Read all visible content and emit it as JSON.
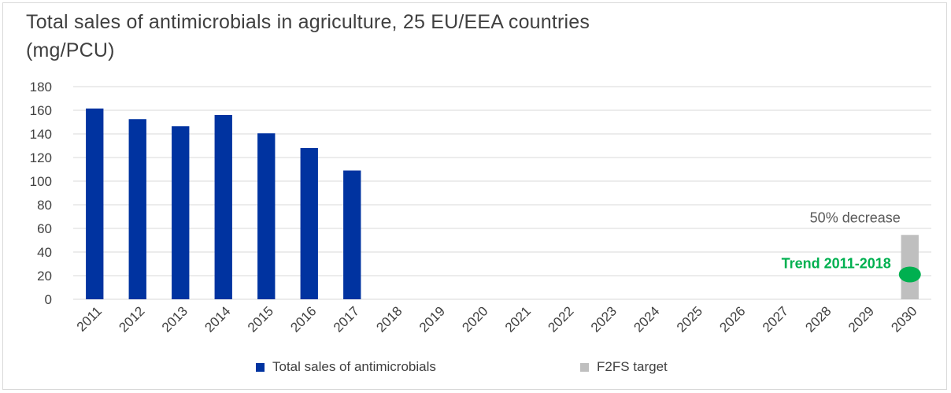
{
  "chart_data": {
    "type": "bar",
    "title_lines": [
      "Total sales of antimicrobials in agriculture, 25 EU/EEA countries",
      "(mg/PCU)"
    ],
    "categories": [
      "2011",
      "2012",
      "2013",
      "2014",
      "2015",
      "2016",
      "2017",
      "2018",
      "2019",
      "2020",
      "2021",
      "2022",
      "2023",
      "2024",
      "2025",
      "2026",
      "2027",
      "2028",
      "2029",
      "2030"
    ],
    "series": [
      {
        "name": "Total sales of antimicrobials",
        "color": "#0033a0",
        "values": [
          161.5,
          152.5,
          146.5,
          156,
          140.5,
          128,
          109,
          null,
          null,
          null,
          null,
          null,
          null,
          null,
          null,
          null,
          null,
          null,
          null,
          null
        ]
      },
      {
        "name": "F2FS target",
        "color": "#bfbfbf",
        "values": [
          null,
          null,
          null,
          null,
          null,
          null,
          null,
          null,
          null,
          null,
          null,
          null,
          null,
          null,
          null,
          null,
          null,
          null,
          null,
          54.5
        ]
      }
    ],
    "point": {
      "name": "Trend 2011-2018",
      "category": "2030",
      "value": 21,
      "color": "#00b050"
    },
    "annotations": {
      "target_label": "50% decrease",
      "trend_label": "Trend 2011-2018"
    },
    "ylim": [
      0,
      180
    ],
    "yticks": [
      0,
      20,
      40,
      60,
      80,
      100,
      120,
      140,
      160,
      180
    ],
    "grid": true,
    "legend_position": "bottom"
  }
}
